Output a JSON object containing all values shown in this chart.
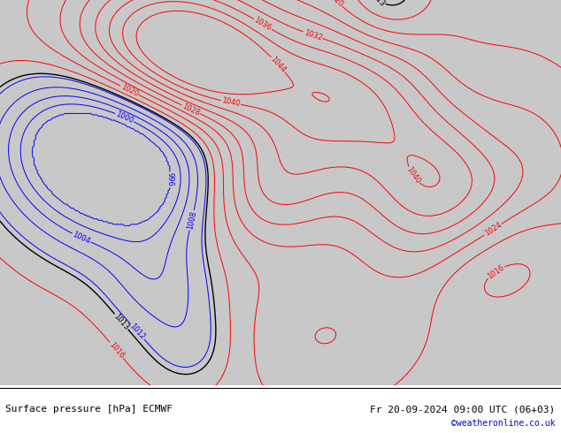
{
  "title_left": "Surface pressure [hPa] ECMWF",
  "title_right": "Fr 20-09-2024 09:00 UTC (06+03)",
  "credit": "©weatheronline.co.uk",
  "credit_color": "#0000cc",
  "land_color": "#aad58a",
  "ocean_color": "#c8c8c8",
  "lake_color": "#c8c8c8",
  "fig_width": 6.34,
  "fig_height": 4.9,
  "dpi": 100,
  "label_fontsize": 6,
  "title_fontsize": 8,
  "extent": [
    -45,
    42,
    24,
    73
  ]
}
